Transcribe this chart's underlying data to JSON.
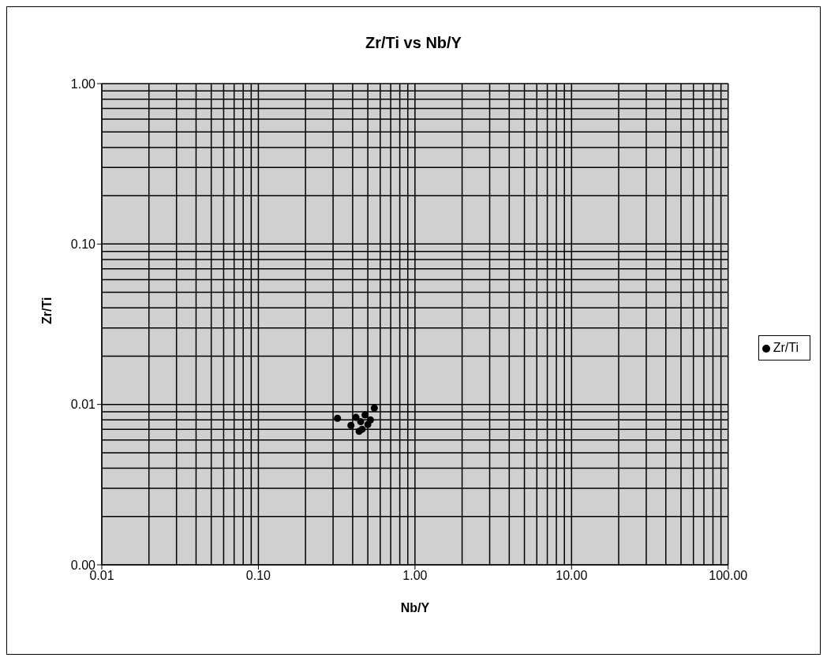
{
  "chart_data": {
    "type": "scatter",
    "title": "Zr/Ti vs Nb/Y",
    "xlabel": "Nb/Y",
    "ylabel": "Zr/Ti",
    "series": [
      {
        "name": "Zr/Ti",
        "color": "#000000",
        "x": [
          0.32,
          0.42,
          0.45,
          0.39,
          0.44,
          0.5,
          0.52,
          0.55,
          0.48,
          0.46
        ],
        "values": [
          0.0082,
          0.0083,
          0.0078,
          0.0074,
          0.0068,
          0.0075,
          0.008,
          0.0095,
          0.0086,
          0.007
        ]
      }
    ],
    "log": "xy",
    "xlim": [
      0.01,
      100
    ],
    "ylim": [
      0.001,
      1
    ],
    "xticks": [
      {
        "value": 0.01,
        "label": "0.01"
      },
      {
        "value": 0.1,
        "label": "0.10"
      },
      {
        "value": 1,
        "label": "1.00"
      },
      {
        "value": 10,
        "label": "10.00"
      },
      {
        "value": 100,
        "label": "100.00"
      }
    ],
    "yticks": [
      {
        "value": 0.001,
        "label": "0.00"
      },
      {
        "value": 0.01,
        "label": "0.01"
      },
      {
        "value": 0.1,
        "label": "0.10"
      },
      {
        "value": 1,
        "label": "1.00"
      }
    ],
    "grid": true,
    "legend": "right",
    "marker": "circle"
  }
}
